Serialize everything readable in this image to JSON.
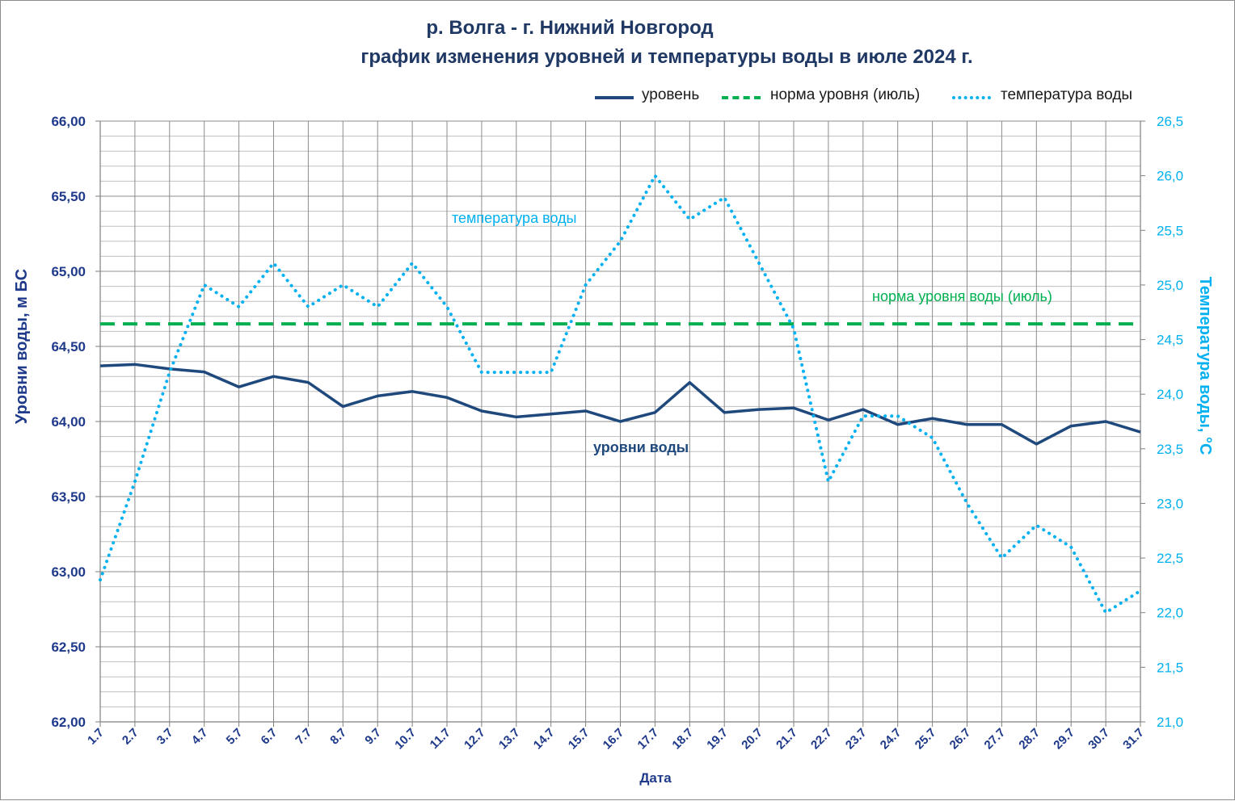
{
  "titles": {
    "line1": "р. Волга - г. Нижний Новгород",
    "line2": "график изменения уровней и температуры  воды в июле 2024 г."
  },
  "legend": {
    "level": "уровень",
    "norm": "норма уровня (июль)",
    "temp": "температура воды"
  },
  "annotations": {
    "temp": "температура воды",
    "norm": "норма уровня воды  (июль)",
    "level": "уровни воды"
  },
  "colors": {
    "level": "#1f497d",
    "norm": "#00b050",
    "temp": "#00b0f0",
    "title": "#1f3864",
    "grid": "#a6a6a6"
  },
  "chart_data": {
    "type": "line",
    "title": "р. Волга - г. Нижний Новгород — график изменения уровней и температуры  воды в июле 2024 г.",
    "xlabel": "Дата",
    "ylabel": "Уровни воды, м БС",
    "y2label": "Температура воды, °С",
    "ylim": [
      62,
      66
    ],
    "y2lim": [
      21,
      26.5
    ],
    "yticks": [
      "62,00",
      "62,50",
      "63,00",
      "63,50",
      "64,00",
      "64,50",
      "65,00",
      "65,50",
      "66,00"
    ],
    "y2ticks": [
      "21,0",
      "21,5",
      "22,0",
      "22,5",
      "23,0",
      "23,5",
      "24,0",
      "24,5",
      "25,0",
      "25,5",
      "26,0",
      "26,5"
    ],
    "categories": [
      "1.7",
      "2.7",
      "3.7",
      "4.7",
      "5.7",
      "6.7",
      "7.7",
      "8.7",
      "9.7",
      "10.7",
      "11.7",
      "12.7",
      "13.7",
      "14.7",
      "15.7",
      "16.7",
      "17.7",
      "18.7",
      "19.7",
      "20.7",
      "21.7",
      "22.7",
      "23.7",
      "24.7",
      "25.7",
      "26.7",
      "27.7",
      "28.7",
      "29.7",
      "30.7",
      "31.7"
    ],
    "series": [
      {
        "name": "уровень",
        "axis": "left",
        "style": "solid",
        "values": [
          64.37,
          64.38,
          64.35,
          64.33,
          64.23,
          64.3,
          64.26,
          64.1,
          64.17,
          64.2,
          64.16,
          64.07,
          64.03,
          64.05,
          64.07,
          64.0,
          64.06,
          64.26,
          64.06,
          64.08,
          64.09,
          64.01,
          64.08,
          63.98,
          64.02,
          63.98,
          63.98,
          63.85,
          63.97,
          64.0,
          63.93
        ]
      },
      {
        "name": "норма уровня (июль)",
        "axis": "left",
        "style": "dashed",
        "values": [
          64.65,
          64.65,
          64.65,
          64.65,
          64.65,
          64.65,
          64.65,
          64.65,
          64.65,
          64.65,
          64.65,
          64.65,
          64.65,
          64.65,
          64.65,
          64.65,
          64.65,
          64.65,
          64.65,
          64.65,
          64.65,
          64.65,
          64.65,
          64.65,
          64.65,
          64.65,
          64.65,
          64.65,
          64.65,
          64.65,
          64.65
        ]
      },
      {
        "name": "температура воды",
        "axis": "right",
        "style": "dotted",
        "values": [
          22.3,
          23.2,
          24.2,
          25.0,
          24.8,
          25.2,
          24.8,
          25.0,
          24.8,
          25.2,
          24.8,
          24.2,
          24.2,
          24.2,
          25.0,
          25.4,
          26.0,
          25.6,
          25.8,
          25.2,
          24.6,
          23.2,
          23.8,
          23.8,
          23.6,
          23.0,
          22.5,
          22.8,
          22.6,
          22.0,
          22.2
        ]
      }
    ]
  }
}
